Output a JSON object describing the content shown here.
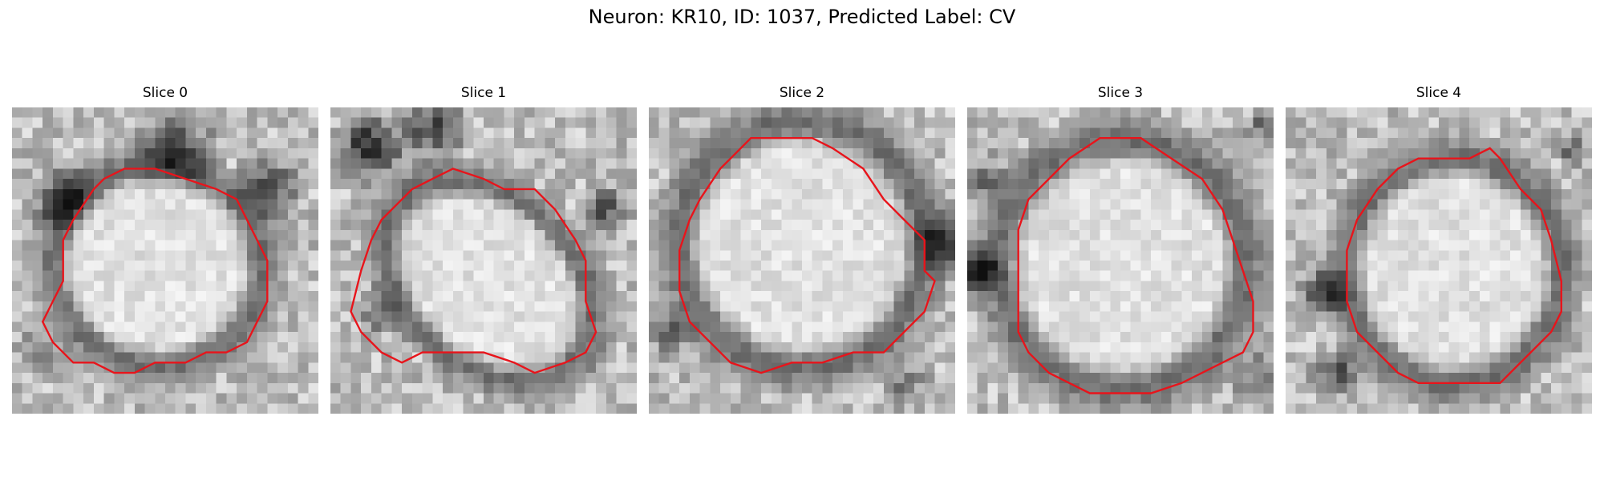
{
  "figure": {
    "title": "Neuron: KR10, ID: 1037, Predicted Label: CV"
  },
  "panels": [
    {
      "title": "Slice 0"
    },
    {
      "title": "Slice 1"
    },
    {
      "title": "Slice 2"
    },
    {
      "title": "Slice 3"
    },
    {
      "title": "Slice 4"
    }
  ],
  "colors": {
    "contour": "#e8141b",
    "background": "#ffffff"
  }
}
